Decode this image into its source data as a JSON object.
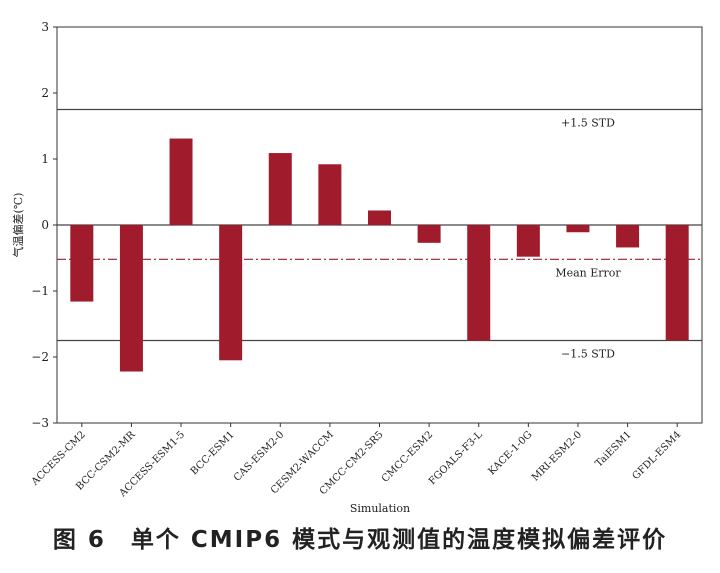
{
  "chart_data": {
    "type": "bar",
    "title": "",
    "xlabel": "Simulation",
    "ylabel": "气温偏差(℃)",
    "ylim": [
      -3,
      3
    ],
    "yticks": [
      -3,
      -2,
      -1,
      0,
      1,
      2,
      3
    ],
    "categories": [
      "ACCESS-CM2",
      "BCC-CSM2-MR",
      "ACCESS-ESM1-5",
      "BCC-ESM1",
      "CAS-ESM2-0",
      "CESM2-WACCM",
      "CMCC-CM2-SR5",
      "CMCC-ESM2",
      "FGOALS-F3-L",
      "KACE-1-0G",
      "MRI-ESM2-0",
      "TaiESM1",
      "GFDL-ESM4"
    ],
    "values": [
      -1.16,
      -2.22,
      1.31,
      -2.05,
      1.09,
      0.92,
      0.22,
      -0.27,
      -1.75,
      -0.48,
      -0.11,
      -0.34,
      -1.75
    ],
    "bar_color": "#a01c2c",
    "reference_lines": [
      {
        "name": "upper_std",
        "value": 1.75,
        "label": "+1.5 STD",
        "style": "solid"
      },
      {
        "name": "zero",
        "value": 0,
        "label": "",
        "style": "solid"
      },
      {
        "name": "mean_error",
        "value": -0.52,
        "label": "Mean Error",
        "style": "dashdot",
        "color": "#a01c2c"
      },
      {
        "name": "lower_std",
        "value": -1.75,
        "label": "−1.5 STD",
        "style": "solid"
      }
    ]
  },
  "caption": "图 6　单个 CMIP6 模式与观测值的温度模拟偏差评价"
}
